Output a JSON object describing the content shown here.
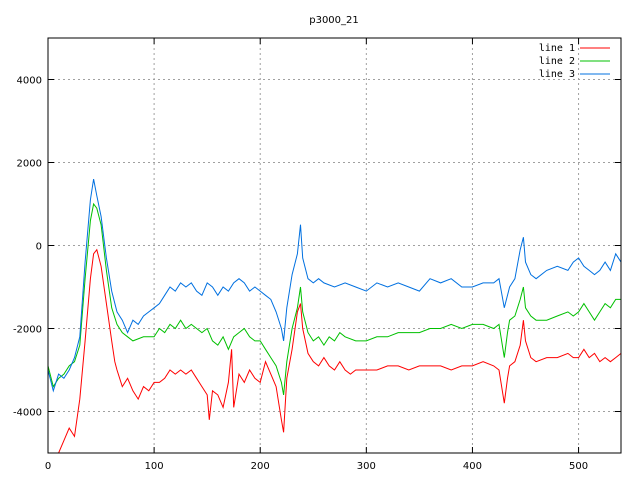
{
  "chart_data": {
    "type": "line",
    "title": "p3000_21",
    "xlabel": "",
    "ylabel": "",
    "xlim": [
      0,
      540
    ],
    "ylim": [
      -5000,
      5000
    ],
    "xticks": [
      0,
      100,
      200,
      300,
      400,
      500
    ],
    "yticks": [
      -4000,
      -2000,
      0,
      2000,
      4000
    ],
    "xtick_labels": [
      "0",
      "100",
      "200",
      "300",
      "400",
      "500"
    ],
    "ytick_labels": [
      "-4000",
      "-2000",
      "0",
      "2000",
      "4000"
    ],
    "grid": true,
    "legend": "top-right",
    "series": [
      {
        "name": "line 1",
        "color": "#ff0000",
        "points": [
          [
            0,
            -5000
          ],
          [
            10,
            -5000
          ],
          [
            15,
            -4700
          ],
          [
            20,
            -4400
          ],
          [
            25,
            -4600
          ],
          [
            30,
            -3700
          ],
          [
            35,
            -2300
          ],
          [
            40,
            -800
          ],
          [
            43,
            -200
          ],
          [
            46,
            -100
          ],
          [
            50,
            -500
          ],
          [
            55,
            -1400
          ],
          [
            60,
            -2300
          ],
          [
            63,
            -2800
          ],
          [
            65,
            -3000
          ],
          [
            70,
            -3400
          ],
          [
            75,
            -3200
          ],
          [
            80,
            -3500
          ],
          [
            85,
            -3700
          ],
          [
            90,
            -3400
          ],
          [
            95,
            -3500
          ],
          [
            100,
            -3300
          ],
          [
            105,
            -3300
          ],
          [
            110,
            -3200
          ],
          [
            115,
            -3000
          ],
          [
            120,
            -3100
          ],
          [
            125,
            -3000
          ],
          [
            130,
            -3100
          ],
          [
            135,
            -3000
          ],
          [
            140,
            -3200
          ],
          [
            145,
            -3400
          ],
          [
            150,
            -3600
          ],
          [
            152,
            -4200
          ],
          [
            155,
            -3500
          ],
          [
            160,
            -3600
          ],
          [
            165,
            -3900
          ],
          [
            170,
            -3300
          ],
          [
            173,
            -2500
          ],
          [
            175,
            -3900
          ],
          [
            180,
            -3100
          ],
          [
            185,
            -3300
          ],
          [
            190,
            -3000
          ],
          [
            195,
            -3200
          ],
          [
            200,
            -3300
          ],
          [
            205,
            -2800
          ],
          [
            210,
            -3100
          ],
          [
            215,
            -3400
          ],
          [
            220,
            -4200
          ],
          [
            222,
            -4500
          ],
          [
            225,
            -3200
          ],
          [
            230,
            -2500
          ],
          [
            235,
            -1600
          ],
          [
            238,
            -1400
          ],
          [
            240,
            -2000
          ],
          [
            245,
            -2600
          ],
          [
            250,
            -2800
          ],
          [
            255,
            -2900
          ],
          [
            260,
            -2700
          ],
          [
            265,
            -2900
          ],
          [
            270,
            -3000
          ],
          [
            275,
            -2800
          ],
          [
            280,
            -3000
          ],
          [
            285,
            -3100
          ],
          [
            290,
            -3000
          ],
          [
            300,
            -3000
          ],
          [
            310,
            -3000
          ],
          [
            320,
            -2900
          ],
          [
            330,
            -2900
          ],
          [
            340,
            -3000
          ],
          [
            350,
            -2900
          ],
          [
            360,
            -2900
          ],
          [
            370,
            -2900
          ],
          [
            380,
            -3000
          ],
          [
            390,
            -2900
          ],
          [
            400,
            -2900
          ],
          [
            410,
            -2800
          ],
          [
            420,
            -2900
          ],
          [
            425,
            -3000
          ],
          [
            430,
            -3800
          ],
          [
            433,
            -3200
          ],
          [
            435,
            -2900
          ],
          [
            440,
            -2800
          ],
          [
            445,
            -2400
          ],
          [
            448,
            -1800
          ],
          [
            450,
            -2300
          ],
          [
            455,
            -2700
          ],
          [
            460,
            -2800
          ],
          [
            470,
            -2700
          ],
          [
            480,
            -2700
          ],
          [
            490,
            -2600
          ],
          [
            495,
            -2700
          ],
          [
            500,
            -2700
          ],
          [
            505,
            -2500
          ],
          [
            510,
            -2700
          ],
          [
            515,
            -2600
          ],
          [
            520,
            -2800
          ],
          [
            525,
            -2700
          ],
          [
            530,
            -2800
          ],
          [
            535,
            -2700
          ],
          [
            540,
            -2600
          ]
        ]
      },
      {
        "name": "line 2",
        "color": "#00c000",
        "points": [
          [
            0,
            -2900
          ],
          [
            5,
            -3400
          ],
          [
            10,
            -3200
          ],
          [
            15,
            -3100
          ],
          [
            20,
            -2900
          ],
          [
            25,
            -2800
          ],
          [
            30,
            -2400
          ],
          [
            35,
            -800
          ],
          [
            40,
            600
          ],
          [
            43,
            1000
          ],
          [
            46,
            900
          ],
          [
            50,
            500
          ],
          [
            55,
            -600
          ],
          [
            60,
            -1500
          ],
          [
            65,
            -1900
          ],
          [
            70,
            -2100
          ],
          [
            75,
            -2200
          ],
          [
            80,
            -2300
          ],
          [
            90,
            -2200
          ],
          [
            100,
            -2200
          ],
          [
            105,
            -2000
          ],
          [
            110,
            -2100
          ],
          [
            115,
            -1900
          ],
          [
            120,
            -2000
          ],
          [
            125,
            -1800
          ],
          [
            130,
            -2000
          ],
          [
            135,
            -1900
          ],
          [
            140,
            -2000
          ],
          [
            145,
            -2100
          ],
          [
            150,
            -2000
          ],
          [
            155,
            -2300
          ],
          [
            160,
            -2400
          ],
          [
            165,
            -2200
          ],
          [
            170,
            -2500
          ],
          [
            175,
            -2200
          ],
          [
            180,
            -2100
          ],
          [
            185,
            -2000
          ],
          [
            190,
            -2200
          ],
          [
            195,
            -2300
          ],
          [
            200,
            -2300
          ],
          [
            205,
            -2500
          ],
          [
            210,
            -2700
          ],
          [
            215,
            -2900
          ],
          [
            220,
            -3300
          ],
          [
            222,
            -3600
          ],
          [
            225,
            -2800
          ],
          [
            230,
            -2000
          ],
          [
            235,
            -1500
          ],
          [
            238,
            -1000
          ],
          [
            240,
            -1600
          ],
          [
            245,
            -2100
          ],
          [
            250,
            -2300
          ],
          [
            255,
            -2200
          ],
          [
            260,
            -2400
          ],
          [
            265,
            -2200
          ],
          [
            270,
            -2300
          ],
          [
            275,
            -2100
          ],
          [
            280,
            -2200
          ],
          [
            290,
            -2300
          ],
          [
            300,
            -2300
          ],
          [
            310,
            -2200
          ],
          [
            320,
            -2200
          ],
          [
            330,
            -2100
          ],
          [
            340,
            -2100
          ],
          [
            350,
            -2100
          ],
          [
            360,
            -2000
          ],
          [
            370,
            -2000
          ],
          [
            380,
            -1900
          ],
          [
            390,
            -2000
          ],
          [
            400,
            -1900
          ],
          [
            410,
            -1900
          ],
          [
            420,
            -2000
          ],
          [
            425,
            -1900
          ],
          [
            430,
            -2700
          ],
          [
            433,
            -2100
          ],
          [
            435,
            -1800
          ],
          [
            440,
            -1700
          ],
          [
            445,
            -1300
          ],
          [
            448,
            -1000
          ],
          [
            450,
            -1500
          ],
          [
            455,
            -1700
          ],
          [
            460,
            -1800
          ],
          [
            470,
            -1800
          ],
          [
            480,
            -1700
          ],
          [
            490,
            -1600
          ],
          [
            495,
            -1700
          ],
          [
            500,
            -1600
          ],
          [
            505,
            -1400
          ],
          [
            510,
            -1600
          ],
          [
            515,
            -1800
          ],
          [
            520,
            -1600
          ],
          [
            525,
            -1400
          ],
          [
            530,
            -1500
          ],
          [
            535,
            -1300
          ],
          [
            540,
            -1300
          ]
        ]
      },
      {
        "name": "line 3",
        "color": "#0070e0",
        "points": [
          [
            0,
            -3000
          ],
          [
            5,
            -3500
          ],
          [
            10,
            -3100
          ],
          [
            15,
            -3200
          ],
          [
            20,
            -3000
          ],
          [
            25,
            -2700
          ],
          [
            30,
            -2200
          ],
          [
            35,
            -400
          ],
          [
            40,
            1100
          ],
          [
            43,
            1600
          ],
          [
            46,
            1200
          ],
          [
            50,
            700
          ],
          [
            55,
            -300
          ],
          [
            60,
            -1100
          ],
          [
            65,
            -1600
          ],
          [
            70,
            -1800
          ],
          [
            75,
            -2100
          ],
          [
            80,
            -1800
          ],
          [
            85,
            -1900
          ],
          [
            90,
            -1700
          ],
          [
            95,
            -1600
          ],
          [
            100,
            -1500
          ],
          [
            105,
            -1400
          ],
          [
            110,
            -1200
          ],
          [
            115,
            -1000
          ],
          [
            120,
            -1100
          ],
          [
            125,
            -900
          ],
          [
            130,
            -1000
          ],
          [
            135,
            -900
          ],
          [
            140,
            -1100
          ],
          [
            145,
            -1200
          ],
          [
            150,
            -900
          ],
          [
            155,
            -1000
          ],
          [
            160,
            -1200
          ],
          [
            165,
            -1000
          ],
          [
            170,
            -1100
          ],
          [
            175,
            -900
          ],
          [
            180,
            -800
          ],
          [
            185,
            -900
          ],
          [
            190,
            -1100
          ],
          [
            195,
            -1000
          ],
          [
            200,
            -1100
          ],
          [
            205,
            -1200
          ],
          [
            210,
            -1300
          ],
          [
            215,
            -1600
          ],
          [
            220,
            -2000
          ],
          [
            222,
            -2300
          ],
          [
            225,
            -1500
          ],
          [
            230,
            -700
          ],
          [
            235,
            -200
          ],
          [
            238,
            500
          ],
          [
            240,
            -300
          ],
          [
            245,
            -800
          ],
          [
            250,
            -900
          ],
          [
            255,
            -800
          ],
          [
            260,
            -900
          ],
          [
            270,
            -1000
          ],
          [
            280,
            -900
          ],
          [
            290,
            -1000
          ],
          [
            300,
            -1100
          ],
          [
            310,
            -900
          ],
          [
            320,
            -1000
          ],
          [
            330,
            -900
          ],
          [
            340,
            -1000
          ],
          [
            350,
            -1100
          ],
          [
            360,
            -800
          ],
          [
            370,
            -900
          ],
          [
            380,
            -800
          ],
          [
            390,
            -1000
          ],
          [
            400,
            -1000
          ],
          [
            410,
            -900
          ],
          [
            420,
            -900
          ],
          [
            425,
            -800
          ],
          [
            430,
            -1500
          ],
          [
            433,
            -1200
          ],
          [
            435,
            -1000
          ],
          [
            440,
            -800
          ],
          [
            445,
            -100
          ],
          [
            448,
            200
          ],
          [
            450,
            -400
          ],
          [
            455,
            -700
          ],
          [
            460,
            -800
          ],
          [
            470,
            -600
          ],
          [
            480,
            -500
          ],
          [
            490,
            -600
          ],
          [
            495,
            -400
          ],
          [
            500,
            -300
          ],
          [
            505,
            -500
          ],
          [
            510,
            -600
          ],
          [
            515,
            -700
          ],
          [
            520,
            -600
          ],
          [
            525,
            -400
          ],
          [
            530,
            -600
          ],
          [
            535,
            -200
          ],
          [
            540,
            -400
          ]
        ]
      }
    ]
  }
}
